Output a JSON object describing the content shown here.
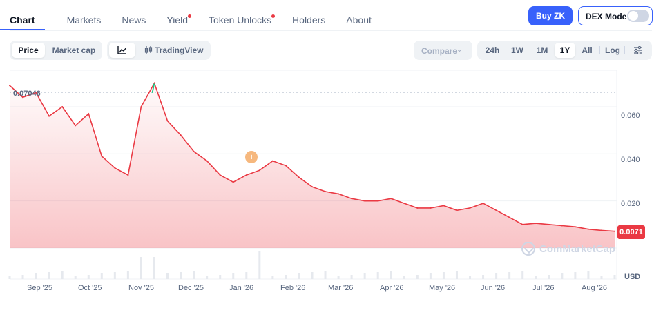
{
  "nav": {
    "tabs": [
      {
        "label": "Chart",
        "active": true,
        "dot": false
      },
      {
        "label": "Markets",
        "active": false,
        "dot": false
      },
      {
        "label": "News",
        "active": false,
        "dot": false
      },
      {
        "label": "Yield",
        "active": false,
        "dot": true
      },
      {
        "label": "Token Unlocks",
        "active": false,
        "dot": true
      },
      {
        "label": "Holders",
        "active": false,
        "dot": false
      },
      {
        "label": "About",
        "active": false,
        "dot": false
      }
    ],
    "buy_label": "Buy ZK",
    "dex_label": "DEX Mode",
    "dex_enabled": false
  },
  "controls": {
    "metric": [
      "Price",
      "Market cap"
    ],
    "metric_selected": "Price",
    "view_tradingview": "TradingView",
    "compare_label": "Compare",
    "ranges": [
      "24h",
      "1W",
      "1M",
      "1Y",
      "All"
    ],
    "range_selected": "1Y",
    "log_label": "Log"
  },
  "chart": {
    "high_label": "0.07046",
    "current_price": "0.0071",
    "currency": "USD",
    "y_ticks": [
      "0.060",
      "0.040",
      "0.020"
    ],
    "x_ticks": [
      "Sep '25",
      "Oct '25",
      "Nov '25",
      "Dec '25",
      "Jan '26",
      "Feb '26",
      "Mar '26",
      "Apr '26",
      "May '26",
      "Jun '26",
      "Jul '26",
      "Aug '26"
    ],
    "info_marker": "i",
    "watermark": "CoinMarketCap",
    "colors": {
      "line": "#ea3943",
      "peak": "#16c784",
      "accent": "#3861fb"
    }
  },
  "chart_data": {
    "type": "area",
    "ylim": [
      0.0,
      0.0755
    ],
    "x": [
      "Sep '25",
      "",
      "",
      "",
      "Oct '25",
      "",
      "",
      "",
      "Nov '25",
      "",
      "",
      "",
      "Dec '25",
      "",
      "",
      "",
      "Jan '26",
      "",
      "",
      "",
      "Feb '26",
      "",
      "",
      "",
      "Mar '26",
      "",
      "",
      "",
      "Apr '26",
      "",
      "",
      "",
      "May '26",
      "",
      "",
      "",
      "Jun '26",
      "",
      "",
      "",
      "Jul '26",
      "",
      "",
      "",
      "Aug '26",
      "",
      ""
    ],
    "series": [
      {
        "values": [
          0.069,
          0.064,
          0.066,
          0.056,
          0.06,
          0.052,
          0.057,
          0.039,
          0.034,
          0.031,
          0.06,
          0.07,
          0.054,
          0.048,
          0.041,
          0.037,
          0.031,
          0.028,
          0.031,
          0.033,
          0.037,
          0.035,
          0.03,
          0.026,
          0.024,
          0.023,
          0.021,
          0.02,
          0.02,
          0.021,
          0.019,
          0.017,
          0.017,
          0.018,
          0.016,
          0.017,
          0.019,
          0.016,
          0.013,
          0.01,
          0.0105,
          0.01,
          0.0095,
          0.009,
          0.008,
          0.0075,
          0.0071
        ]
      }
    ]
  }
}
